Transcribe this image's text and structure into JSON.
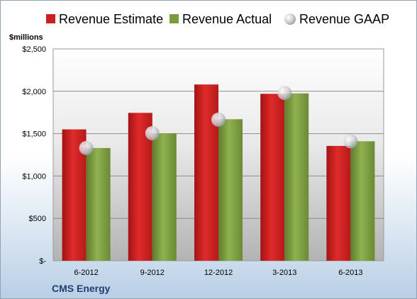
{
  "chart_data": {
    "type": "bar",
    "title": "",
    "unit_label": "$millions",
    "company": "CMS Energy",
    "categories": [
      "6-2012",
      "9-2012",
      "12-2012",
      "3-2013",
      "6-2013"
    ],
    "series": [
      {
        "name": "Revenue Estimate",
        "type": "bar",
        "color": "#cc1f1f",
        "values": [
          1550,
          1745,
          2080,
          1970,
          1355
        ]
      },
      {
        "name": "Revenue Actual",
        "type": "bar",
        "color": "#7a9b3e",
        "values": [
          1330,
          1505,
          1670,
          1975,
          1410
        ]
      },
      {
        "name": "Revenue GAAP",
        "type": "marker",
        "color": "#c8c8d0",
        "values": [
          1330,
          1505,
          1665,
          1980,
          1410
        ]
      }
    ],
    "ylim": [
      0,
      2500
    ],
    "yticks": [
      {
        "value": 0,
        "label": "$-"
      },
      {
        "value": 500,
        "label": "$500"
      },
      {
        "value": 1000,
        "label": "$1,000"
      },
      {
        "value": 1500,
        "label": "$1,500"
      },
      {
        "value": 2000,
        "label": "$2,000"
      },
      {
        "value": 2500,
        "label": "$2,500"
      }
    ],
    "grid": true,
    "legend_position": "top"
  }
}
